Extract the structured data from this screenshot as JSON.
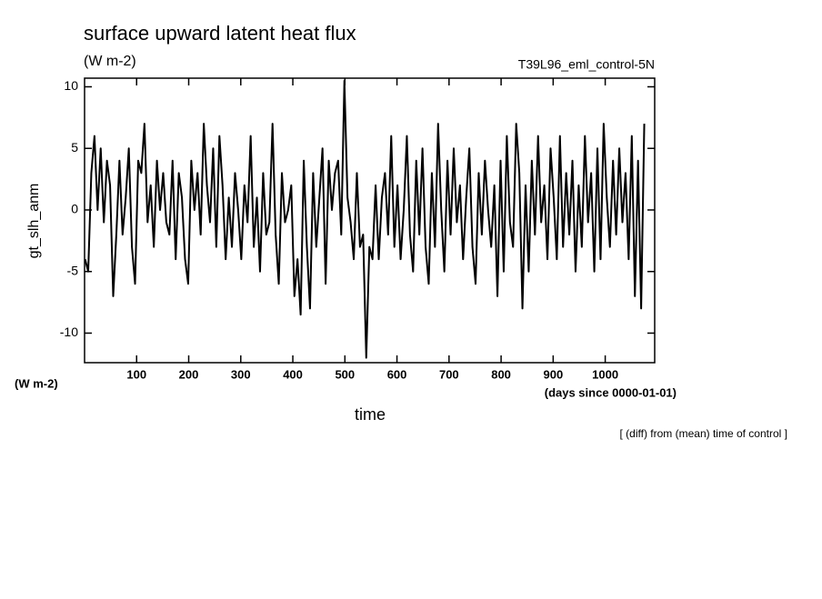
{
  "chart_data": {
    "type": "line",
    "title": "surface upward latent heat flux",
    "subtitle": "(W m-2)",
    "run_label": "T39L96_eml_control-5N",
    "y_label": "gt_slh_anm",
    "y_unit": "(W m-2)",
    "x_label": "time",
    "x_unit": "(days since 0000-01-01)",
    "annotation": "[ (diff) from (mean) time of control ]",
    "color": "#000000",
    "xlim": [
      0,
      1095
    ],
    "xticks": [
      100,
      200,
      300,
      400,
      500,
      600,
      700,
      800,
      900,
      1000
    ],
    "ylim": [
      -12.4,
      10.7
    ],
    "yticks": [
      -10,
      -5,
      0,
      5,
      10
    ],
    "x": [
      1,
      7,
      13,
      19,
      25,
      31,
      37,
      43,
      49,
      55,
      61,
      67,
      73,
      79,
      85,
      91,
      97,
      103,
      109,
      115,
      121,
      127,
      133,
      139,
      145,
      151,
      157,
      163,
      169,
      175,
      181,
      187,
      193,
      199,
      205,
      211,
      217,
      223,
      229,
      235,
      241,
      247,
      253,
      259,
      265,
      271,
      277,
      283,
      289,
      295,
      301,
      307,
      313,
      319,
      325,
      331,
      337,
      343,
      349,
      355,
      361,
      367,
      373,
      379,
      385,
      391,
      397,
      403,
      409,
      415,
      421,
      427,
      433,
      439,
      445,
      451,
      457,
      463,
      469,
      475,
      481,
      487,
      493,
      499,
      505,
      511,
      517,
      523,
      529,
      535,
      541,
      547,
      553,
      559,
      565,
      571,
      577,
      583,
      589,
      595,
      601,
      607,
      613,
      619,
      625,
      631,
      637,
      643,
      649,
      655,
      661,
      667,
      673,
      679,
      685,
      691,
      697,
      703,
      709,
      715,
      721,
      727,
      733,
      739,
      745,
      751,
      757,
      763,
      769,
      775,
      781,
      787,
      793,
      799,
      805,
      811,
      817,
      823,
      829,
      835,
      841,
      847,
      853,
      859,
      865,
      871,
      877,
      883,
      889,
      895,
      901,
      907,
      913,
      919,
      925,
      931,
      937,
      943,
      949,
      955,
      961,
      967,
      973,
      979,
      985,
      991,
      997,
      1003,
      1009,
      1015,
      1021,
      1027,
      1033,
      1039,
      1045,
      1051,
      1057,
      1063,
      1069,
      1075
    ],
    "values": [
      -4,
      -5,
      3,
      6,
      0,
      5,
      -1,
      4,
      2,
      -7,
      -2,
      4,
      -2,
      1,
      5,
      -3,
      -6,
      4,
      3,
      7,
      -1,
      2,
      -3,
      4,
      0,
      3,
      -1,
      -2,
      4,
      -4,
      3,
      1,
      -4,
      -6,
      4,
      0,
      3,
      -2,
      7,
      2,
      -1,
      5,
      -3,
      6,
      2,
      -4,
      1,
      -3,
      3,
      0,
      -4,
      2,
      -1,
      6,
      -3,
      1,
      -5,
      3,
      -2,
      -1,
      7,
      -2,
      -6,
      3,
      -1,
      0,
      2,
      -7,
      -4,
      -8.5,
      4,
      -3,
      -8,
      3,
      -3,
      1,
      5,
      -6,
      4,
      0,
      3,
      4,
      -2,
      10.5,
      1,
      -1,
      -4,
      3,
      -3,
      -2,
      -12,
      -3,
      -4,
      2,
      -4,
      1,
      3,
      -2,
      6,
      -3,
      2,
      -4,
      0,
      6,
      -2,
      -5,
      4,
      -2,
      5,
      -3,
      -6,
      3,
      -3,
      7,
      0,
      -5,
      4,
      -2,
      5,
      -1,
      2,
      -4,
      1,
      5,
      -3,
      -6,
      3,
      -2,
      4,
      0,
      -3,
      2,
      -7,
      4,
      -5,
      6,
      -1,
      -3,
      7,
      3,
      -8,
      2,
      -5,
      4,
      -2,
      6,
      -1,
      2,
      -4,
      5,
      1,
      -4,
      6,
      -3,
      3,
      -2,
      4,
      -5,
      2,
      -3,
      6,
      -1,
      3,
      -5,
      5,
      -4,
      7,
      1,
      -3,
      4,
      -2,
      5,
      -1,
      3,
      -4,
      6,
      -7,
      4,
      -8,
      7
    ]
  }
}
